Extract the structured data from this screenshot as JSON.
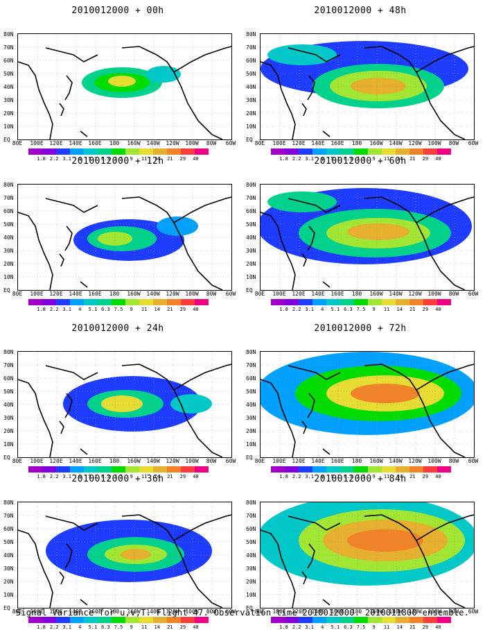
{
  "caption": "Signal Variance for u,v,T. Flight 47. Observation time 2010012000. 2010011800 ensemble.",
  "lat_labels": [
    "80N",
    "70N",
    "60N",
    "50N",
    "40N",
    "30N",
    "20N",
    "10N",
    "EQ"
  ],
  "lon_labels": [
    "80E",
    "100E",
    "120E",
    "140E",
    "160E",
    "180",
    "160W",
    "140W",
    "120W",
    "100W",
    "80W",
    "60W"
  ],
  "colorbar": {
    "levels": [
      "1.8",
      "2.2",
      "3.1",
      "4",
      "5.1",
      "6.3",
      "7.5",
      "9",
      "11",
      "14",
      "21",
      "29",
      "40"
    ],
    "colors": [
      "#a000c8",
      "#8200dc",
      "#1e3cff",
      "#00a0ff",
      "#00c8c8",
      "#00d28c",
      "#00dc00",
      "#a0e632",
      "#e6dc32",
      "#e6af2d",
      "#f08228",
      "#fa3c3c",
      "#f00082"
    ]
  },
  "panels": [
    {
      "title": "2010012000 + 00h"
    },
    {
      "title": "2010012000 + 48h"
    },
    {
      "title": "2010012000 + 12h"
    },
    {
      "title": "2010012000 + 60h"
    },
    {
      "title": "2010012000 + 24h"
    },
    {
      "title": "2010012000 + 72h"
    },
    {
      "title": "2010012000 + 36h"
    },
    {
      "title": "2010012000 + 84h"
    }
  ],
  "chart_data": {
    "type": "heatmap",
    "description_fields": "Each panel: filled-contour map of signal variance; x = longitude, y = latitude; approximate blob centers listed",
    "xlim": [
      "80E",
      "60W"
    ],
    "ylim": [
      "EQ",
      "80N"
    ],
    "units_levels": [
      1.8,
      2.2,
      3.1,
      4,
      5.1,
      6.3,
      7.5,
      9,
      11,
      14,
      21,
      29,
      40
    ],
    "maps": [
      {
        "panel": "2010012000 + 00h",
        "features": [
          {
            "lon": "180",
            "lat": "40N",
            "max_level": 11
          }
        ]
      },
      {
        "panel": "2010012000 + 48h",
        "features": [
          {
            "lon": "160W",
            "lat": "40N",
            "max_level": 21
          }
        ]
      },
      {
        "panel": "2010012000 + 12h",
        "features": [
          {
            "lon": "170E",
            "lat": "35N",
            "max_level": 9
          }
        ]
      },
      {
        "panel": "2010012000 + 60h",
        "features": [
          {
            "lon": "160W",
            "lat": "35N",
            "max_level": 21
          }
        ]
      },
      {
        "panel": "2010012000 + 24h",
        "features": [
          {
            "lon": "170E",
            "lat": "35N",
            "max_level": 11
          }
        ]
      },
      {
        "panel": "2010012000 + 72h",
        "features": [
          {
            "lon": "140W",
            "lat": "40N",
            "max_level": 29
          }
        ]
      },
      {
        "panel": "2010012000 + 36h",
        "features": [
          {
            "lon": "180",
            "lat": "35N",
            "max_level": 14
          }
        ]
      },
      {
        "panel": "2010012000 + 84h",
        "features": [
          {
            "lon": "160W",
            "lat": "45N",
            "max_level": 29
          }
        ]
      }
    ]
  }
}
